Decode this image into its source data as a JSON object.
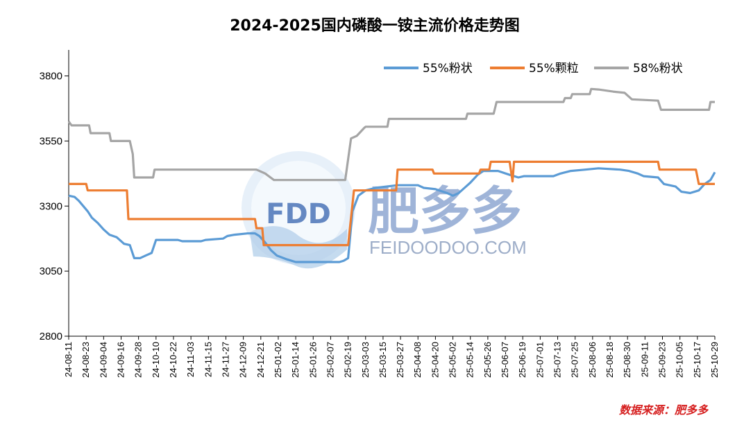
{
  "chart_data": {
    "type": "line",
    "title": "2024-2025国内磷酸一铵主流价格走势图",
    "ylim": [
      2800,
      3900
    ],
    "yticks": [
      2800,
      3050,
      3300,
      3550,
      3800
    ],
    "xticks": [
      "24-08-11",
      "24-08-23",
      "24-09-04",
      "24-09-16",
      "24-09-28",
      "24-10-10",
      "24-10-22",
      "24-11-03",
      "24-11-15",
      "24-11-27",
      "24-12-09",
      "24-12-21",
      "25-01-02",
      "25-01-14",
      "25-01-26",
      "25-02-07",
      "25-02-19",
      "25-03-03",
      "25-03-15",
      "25-03-27",
      "25-04-08",
      "25-04-20",
      "25-05-02",
      "25-05-14",
      "25-05-26",
      "25-06-07",
      "25-06-19",
      "25-07-01",
      "25-07-13",
      "25-07-25",
      "25-08-06",
      "25-08-18",
      "25-08-30",
      "25-09-11",
      "25-09-23",
      "25-10-05",
      "25-10-17",
      "25-10-29"
    ],
    "x_start": "2024-08-11",
    "x_end": "2025-10-29",
    "legend_position": "top-right",
    "series": [
      {
        "name": "55%粉状",
        "color": "#5b9bd5",
        "points": [
          [
            "2024-08-11",
            3340
          ],
          [
            "2024-08-15",
            3335
          ],
          [
            "2024-08-18",
            3320
          ],
          [
            "2024-08-21",
            3300
          ],
          [
            "2024-08-24",
            3280
          ],
          [
            "2024-08-27",
            3255
          ],
          [
            "2024-08-31",
            3235
          ],
          [
            "2024-09-04",
            3210
          ],
          [
            "2024-09-08",
            3190
          ],
          [
            "2024-09-13",
            3180
          ],
          [
            "2024-09-18",
            3155
          ],
          [
            "2024-09-22",
            3150
          ],
          [
            "2024-09-25",
            3100
          ],
          [
            "2024-09-29",
            3100
          ],
          [
            "2024-10-03",
            3110
          ],
          [
            "2024-10-07",
            3120
          ],
          [
            "2024-10-10",
            3170
          ],
          [
            "2024-10-25",
            3170
          ],
          [
            "2024-10-28",
            3165
          ],
          [
            "2024-11-10",
            3165
          ],
          [
            "2024-11-13",
            3170
          ],
          [
            "2024-11-25",
            3175
          ],
          [
            "2024-11-28",
            3185
          ],
          [
            "2024-12-03",
            3190
          ],
          [
            "2024-12-12",
            3195
          ],
          [
            "2024-12-17",
            3195
          ],
          [
            "2024-12-20",
            3185
          ],
          [
            "2024-12-24",
            3160
          ],
          [
            "2024-12-28",
            3130
          ],
          [
            "2025-01-01",
            3110
          ],
          [
            "2025-01-08",
            3095
          ],
          [
            "2025-01-14",
            3085
          ],
          [
            "2025-02-13",
            3085
          ],
          [
            "2025-02-16",
            3090
          ],
          [
            "2025-02-19",
            3100
          ],
          [
            "2025-02-22",
            3280
          ],
          [
            "2025-02-26",
            3340
          ],
          [
            "2025-03-03",
            3360
          ],
          [
            "2025-03-10",
            3370
          ],
          [
            "2025-03-25",
            3380
          ],
          [
            "2025-04-08",
            3380
          ],
          [
            "2025-04-12",
            3370
          ],
          [
            "2025-04-20",
            3365
          ],
          [
            "2025-04-28",
            3350
          ],
          [
            "2025-05-02",
            3340
          ],
          [
            "2025-05-06",
            3350
          ],
          [
            "2025-05-10",
            3370
          ],
          [
            "2025-05-14",
            3390
          ],
          [
            "2025-05-19",
            3420
          ],
          [
            "2025-05-23",
            3435
          ],
          [
            "2025-06-02",
            3435
          ],
          [
            "2025-06-10",
            3420
          ],
          [
            "2025-06-16",
            3410
          ],
          [
            "2025-06-20",
            3415
          ],
          [
            "2025-07-10",
            3415
          ],
          [
            "2025-07-15",
            3425
          ],
          [
            "2025-07-22",
            3435
          ],
          [
            "2025-08-01",
            3440
          ],
          [
            "2025-08-10",
            3445
          ],
          [
            "2025-08-25",
            3440
          ],
          [
            "2025-08-31",
            3435
          ],
          [
            "2025-09-06",
            3425
          ],
          [
            "2025-09-10",
            3415
          ],
          [
            "2025-09-20",
            3410
          ],
          [
            "2025-09-24",
            3385
          ],
          [
            "2025-10-02",
            3375
          ],
          [
            "2025-10-06",
            3355
          ],
          [
            "2025-10-12",
            3350
          ],
          [
            "2025-10-18",
            3360
          ],
          [
            "2025-10-22",
            3385
          ],
          [
            "2025-10-26",
            3400
          ],
          [
            "2025-10-29",
            3430
          ]
        ]
      },
      {
        "name": "55%颗粒",
        "color": "#ed7d31",
        "points": [
          [
            "2024-08-11",
            3385
          ],
          [
            "2024-08-23",
            3385
          ],
          [
            "2024-08-24",
            3360
          ],
          [
            "2024-09-20",
            3360
          ],
          [
            "2024-09-21",
            3250
          ],
          [
            "2024-12-17",
            3250
          ],
          [
            "2024-12-18",
            3215
          ],
          [
            "2024-12-22",
            3215
          ],
          [
            "2024-12-23",
            3150
          ],
          [
            "2025-02-19",
            3150
          ],
          [
            "2025-02-23",
            3360
          ],
          [
            "2025-03-24",
            3360
          ],
          [
            "2025-03-25",
            3440
          ],
          [
            "2025-04-18",
            3440
          ],
          [
            "2025-04-19",
            3425
          ],
          [
            "2025-05-20",
            3425
          ],
          [
            "2025-05-21",
            3440
          ],
          [
            "2025-05-27",
            3440
          ],
          [
            "2025-05-28",
            3470
          ],
          [
            "2025-06-10",
            3470
          ],
          [
            "2025-06-12",
            3395
          ],
          [
            "2025-06-13",
            3470
          ],
          [
            "2025-09-20",
            3470
          ],
          [
            "2025-09-21",
            3440
          ],
          [
            "2025-10-16",
            3440
          ],
          [
            "2025-10-18",
            3385
          ],
          [
            "2025-10-29",
            3385
          ]
        ]
      },
      {
        "name": "58%粉状",
        "color": "#a5a5a5",
        "points": [
          [
            "2024-08-11",
            3625
          ],
          [
            "2024-08-13",
            3610
          ],
          [
            "2024-08-25",
            3610
          ],
          [
            "2024-08-26",
            3580
          ],
          [
            "2024-09-08",
            3580
          ],
          [
            "2024-09-09",
            3550
          ],
          [
            "2024-09-22",
            3550
          ],
          [
            "2024-09-24",
            3500
          ],
          [
            "2024-09-25",
            3410
          ],
          [
            "2024-10-08",
            3410
          ],
          [
            "2024-10-09",
            3440
          ],
          [
            "2024-12-18",
            3440
          ],
          [
            "2024-12-24",
            3425
          ],
          [
            "2024-12-30",
            3400
          ],
          [
            "2025-02-17",
            3400
          ],
          [
            "2025-02-21",
            3560
          ],
          [
            "2025-02-25",
            3570
          ],
          [
            "2025-03-02",
            3600
          ],
          [
            "2025-03-03",
            3605
          ],
          [
            "2025-03-18",
            3605
          ],
          [
            "2025-03-19",
            3635
          ],
          [
            "2025-05-11",
            3635
          ],
          [
            "2025-05-12",
            3655
          ],
          [
            "2025-05-30",
            3655
          ],
          [
            "2025-06-01",
            3700
          ],
          [
            "2025-07-17",
            3700
          ],
          [
            "2025-07-18",
            3715
          ],
          [
            "2025-07-22",
            3715
          ],
          [
            "2025-07-23",
            3730
          ],
          [
            "2025-08-04",
            3730
          ],
          [
            "2025-08-05",
            3750
          ],
          [
            "2025-08-10",
            3748
          ],
          [
            "2025-08-20",
            3740
          ],
          [
            "2025-08-28",
            3735
          ],
          [
            "2025-09-02",
            3710
          ],
          [
            "2025-09-20",
            3705
          ],
          [
            "2025-09-22",
            3670
          ],
          [
            "2025-10-25",
            3670
          ],
          [
            "2025-10-26",
            3700
          ],
          [
            "2025-10-29",
            3700
          ]
        ]
      }
    ]
  },
  "watermark": {
    "logo_text": "FDD",
    "brand_cn": "肥多多",
    "url": "FEIDOODOO.COM"
  },
  "source_note": "数据来源：肥多多"
}
